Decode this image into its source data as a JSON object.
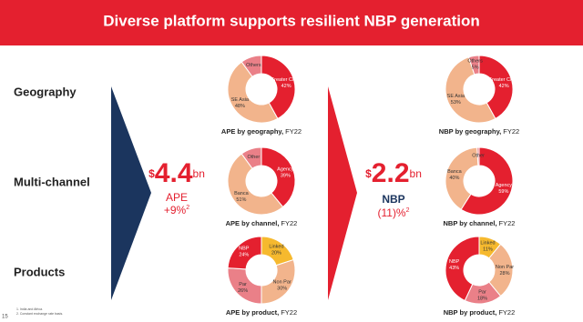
{
  "title": "Diverse platform supports resilient NBP generation",
  "rows": [
    "Geography",
    "Multi-channel",
    "Products"
  ],
  "ape": {
    "currency": "$",
    "amount": "4.4",
    "unit": "bn",
    "label": "APE",
    "change": "+9%",
    "note": "2"
  },
  "nbp": {
    "currency": "$",
    "amount": "2.2",
    "unit": "bn",
    "label": "NBP",
    "change": "(11)%",
    "note": "2"
  },
  "footnotes": [
    "1. India and Africa.",
    "2. Constant exchange rate basis."
  ],
  "page_number": "15",
  "chart_data": [
    {
      "type": "pie",
      "title": "APE by geography,",
      "period": "FY22",
      "categories": [
        "Greater China",
        "SE Asia",
        "Others"
      ],
      "values": [
        42,
        48,
        10
      ],
      "value_labels": [
        "42%",
        "48%",
        null
      ],
      "colors": [
        "#e4202f",
        "#f2b48c",
        "#ea8088"
      ]
    },
    {
      "type": "pie",
      "title": "APE by channel,",
      "period": "FY22",
      "categories": [
        "Agency",
        "Banca",
        "Other"
      ],
      "values": [
        39,
        51,
        10
      ],
      "value_labels": [
        "39%",
        "51%",
        null
      ],
      "colors": [
        "#e4202f",
        "#f2b48c",
        "#ea8088"
      ]
    },
    {
      "type": "pie",
      "title": "APE by product,",
      "period": "FY22",
      "categories": [
        "Linked",
        "Non Par",
        "Par",
        "NBP"
      ],
      "values": [
        20,
        30,
        26,
        24
      ],
      "value_labels": [
        "20%",
        "30%",
        "26%",
        "24%"
      ],
      "colors": [
        "#f6b92e",
        "#f2b48c",
        "#ea8088",
        "#e4202f"
      ]
    },
    {
      "type": "pie",
      "title": "NBP by geography,",
      "period": "FY22",
      "categories": [
        "Greater China",
        "SE Asia",
        "Others"
      ],
      "values": [
        42,
        53,
        5
      ],
      "value_labels": [
        "42%",
        "53%",
        "5%"
      ],
      "colors": [
        "#e4202f",
        "#f2b48c",
        "#ea8088"
      ]
    },
    {
      "type": "pie",
      "title": "NBP by channel,",
      "period": "FY22",
      "categories": [
        "Agency",
        "Banca",
        "Other"
      ],
      "values": [
        59,
        40,
        1
      ],
      "value_labels": [
        "59%",
        "40%",
        null
      ],
      "colors": [
        "#e4202f",
        "#f2b48c",
        "#ea8088"
      ]
    },
    {
      "type": "pie",
      "title": "NBP by product,",
      "period": "FY22",
      "categories": [
        "Linked",
        "Non Par",
        "Par",
        "NBP"
      ],
      "values": [
        11,
        28,
        18,
        43
      ],
      "value_labels": [
        "11%",
        "28%",
        "18%",
        "43%"
      ],
      "colors": [
        "#f6b92e",
        "#f2b48c",
        "#ea8088",
        "#e4202f"
      ]
    }
  ]
}
